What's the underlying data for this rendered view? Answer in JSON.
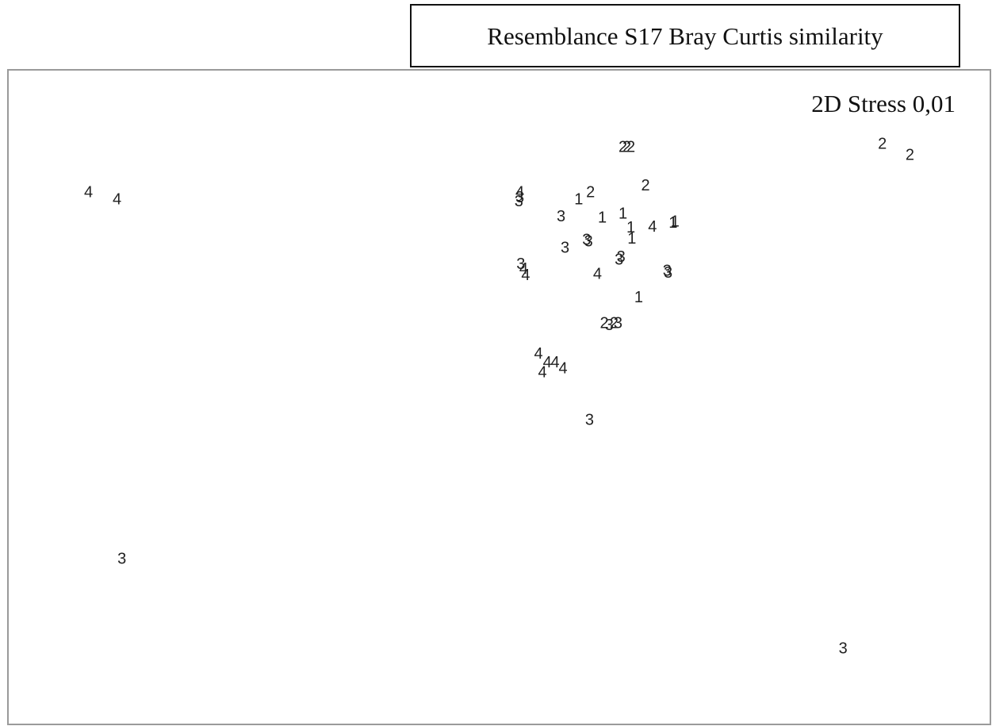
{
  "chart_data": {
    "type": "scatter",
    "title": "Resemblance S17 Bray Curtis similarity",
    "annotation": "2D Stress 0,01",
    "xlim": [
      0,
      100
    ],
    "ylim": [
      0,
      100
    ],
    "color": "#222222",
    "x": [
      8.2,
      11.1,
      89.0,
      91.8,
      11.6,
      85.0,
      59.2,
      64.9,
      59.3,
      58.1,
      56.3,
      60.5,
      62.6,
      63.4,
      63.5,
      65.6,
      67.9,
      67.7,
      56.7,
      58.9,
      59.1,
      62.2,
      62.4,
      60.0,
      67.1,
      67.2,
      64.2,
      62.6,
      63.0,
      63.4,
      52.1,
      52.1,
      52.0,
      52.2,
      52.5,
      52.7,
      60.7,
      61.2,
      61.7,
      62.1,
      54.0,
      54.9,
      55.7,
      56.5,
      54.4
    ],
    "y": [
      81.2,
      80.1,
      88.6,
      86.9,
      25.2,
      11.5,
      46.4,
      82.2,
      81.2,
      80.1,
      77.5,
      77.3,
      77.9,
      75.8,
      74.1,
      75.9,
      76.7,
      76.5,
      72.7,
      73.9,
      73.7,
      70.9,
      71.3,
      68.7,
      69.2,
      68.9,
      65.1,
      88.1,
      88.1,
      88.1,
      81.2,
      80.4,
      79.8,
      70.2,
      69.5,
      68.5,
      61.2,
      60.9,
      61.2,
      61.2,
      56.5,
      55.2,
      55.2,
      54.3,
      53.7
    ],
    "labels": [
      "4",
      "4",
      "2",
      "2",
      "3",
      "3",
      "3",
      "2",
      "2",
      "1",
      "3",
      "1",
      "1",
      "1",
      "1",
      "4",
      "1",
      "1",
      "3",
      "3",
      "3",
      "3",
      "3",
      "4",
      "3",
      "3",
      "1",
      "2",
      "2",
      "2",
      "4",
      "3",
      "3",
      "3",
      "4",
      "4",
      "2",
      "3",
      "2",
      "3",
      "4",
      "4",
      "4",
      "4",
      "4"
    ]
  }
}
